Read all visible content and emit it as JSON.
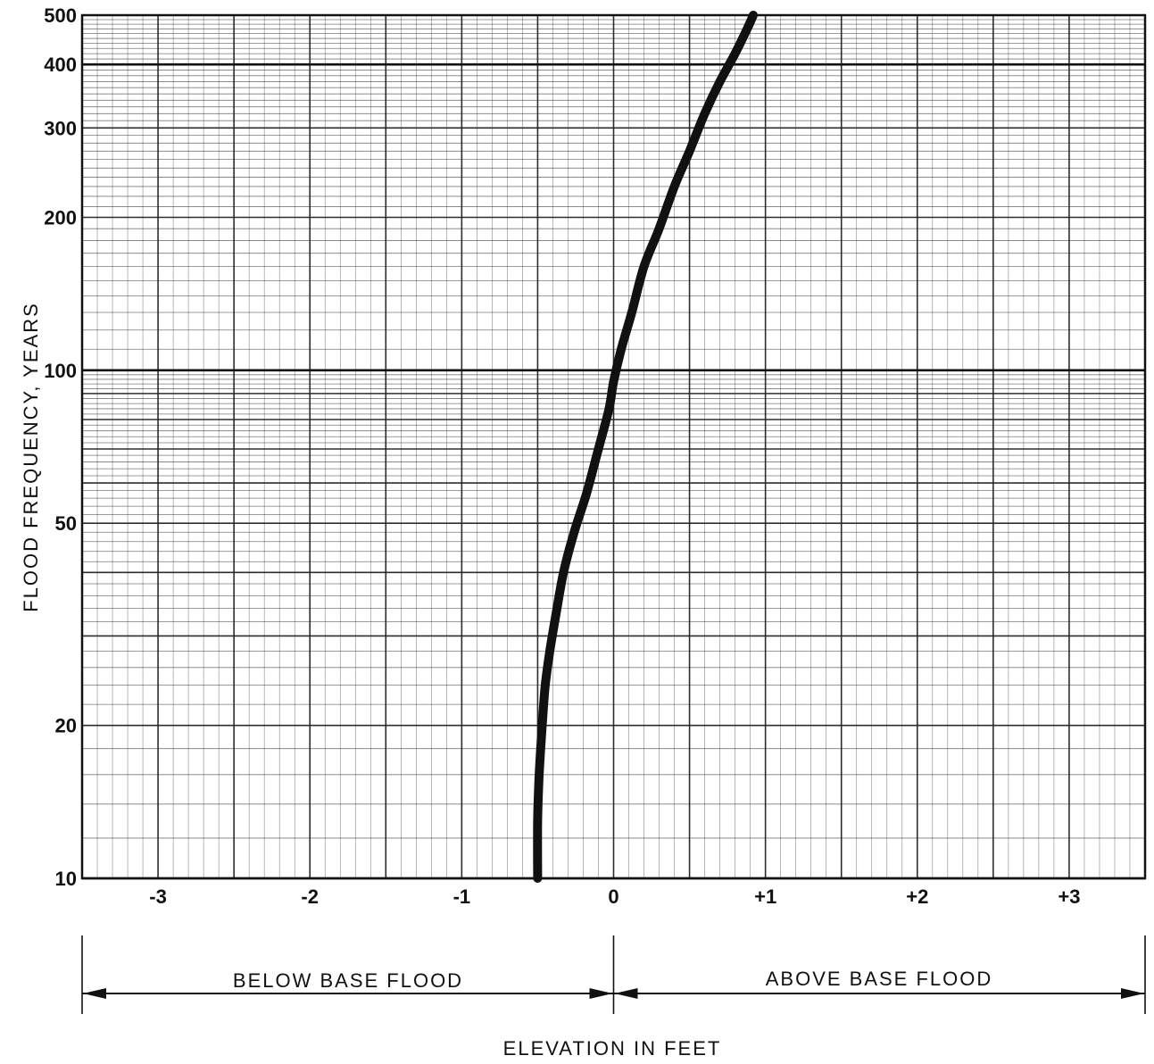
{
  "chart_data": {
    "type": "line",
    "title": "",
    "xlabel": "ELEVATION IN FEET",
    "ylabel": "FLOOD FREQUENCY, YEARS",
    "xlim": [
      -3.5,
      3.5
    ],
    "ylim": [
      10,
      500
    ],
    "yscale": "log",
    "grid": true,
    "x_ticks": [
      {
        "value": -3,
        "label": "-3"
      },
      {
        "value": -2,
        "label": "-2"
      },
      {
        "value": -1,
        "label": "-1"
      },
      {
        "value": 0,
        "label": "0"
      },
      {
        "value": 1,
        "label": "+1"
      },
      {
        "value": 2,
        "label": "+2"
      },
      {
        "value": 3,
        "label": "+3"
      }
    ],
    "y_ticks": [
      {
        "value": 10,
        "label": "10"
      },
      {
        "value": 20,
        "label": "20"
      },
      {
        "value": 50,
        "label": "50"
      },
      {
        "value": 100,
        "label": "100"
      },
      {
        "value": 200,
        "label": "200"
      },
      {
        "value": 300,
        "label": "300"
      },
      {
        "value": 400,
        "label": "400"
      },
      {
        "value": 500,
        "label": "500"
      }
    ],
    "series": [
      {
        "x": [
          -0.5,
          -0.5,
          -0.49,
          -0.47,
          -0.45,
          -0.42,
          -0.38,
          -0.33,
          -0.26,
          -0.18,
          -0.1,
          -0.03,
          0.0,
          0.05,
          0.12,
          0.2,
          0.3,
          0.4,
          0.5,
          0.6,
          0.7,
          0.8,
          0.88,
          0.92
        ],
        "y": [
          10,
          13,
          16,
          20,
          24,
          28,
          33,
          40,
          48,
          57,
          70,
          84,
          95,
          110,
          130,
          160,
          190,
          230,
          270,
          320,
          370,
          420,
          470,
          500
        ]
      }
    ],
    "annotations": {
      "below": "BELOW BASE FLOOD",
      "above": "ABOVE BASE FLOOD"
    },
    "colors": {
      "ink": "#111111",
      "grid": "#222222",
      "background": "#ffffff"
    }
  }
}
